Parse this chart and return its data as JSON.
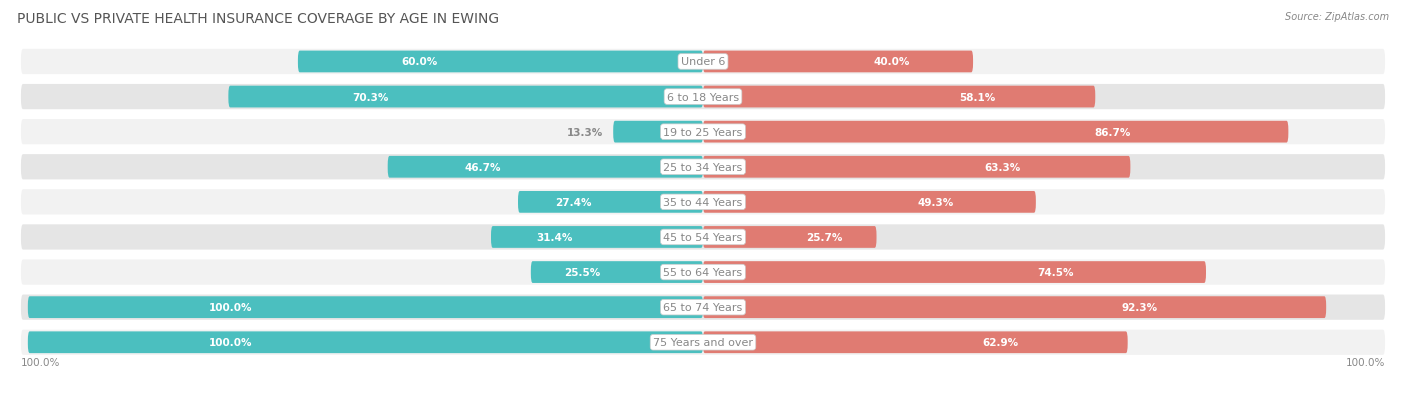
{
  "title": "PUBLIC VS PRIVATE HEALTH INSURANCE COVERAGE BY AGE IN EWING",
  "source": "Source: ZipAtlas.com",
  "categories": [
    "Under 6",
    "6 to 18 Years",
    "19 to 25 Years",
    "25 to 34 Years",
    "35 to 44 Years",
    "45 to 54 Years",
    "55 to 64 Years",
    "65 to 74 Years",
    "75 Years and over"
  ],
  "public_values": [
    60.0,
    70.3,
    13.3,
    46.7,
    27.4,
    31.4,
    25.5,
    100.0,
    100.0
  ],
  "private_values": [
    40.0,
    58.1,
    86.7,
    63.3,
    49.3,
    25.7,
    74.5,
    92.3,
    62.9
  ],
  "public_color": "#4bbfbf",
  "private_color": "#e07b72",
  "public_color_light": "#7dd4d4",
  "private_color_light": "#eeada8",
  "bg_color": "#ffffff",
  "row_bg_light": "#f2f2f2",
  "row_bg_dark": "#e5e5e5",
  "title_color": "#555555",
  "label_color": "#888888",
  "value_color_inside": "#ffffff",
  "value_color_outside": "#888888",
  "center_label_color": "#888888",
  "max_val": 100.0,
  "title_fontsize": 10,
  "label_fontsize": 8,
  "value_fontsize": 7.5,
  "legend_fontsize": 8
}
